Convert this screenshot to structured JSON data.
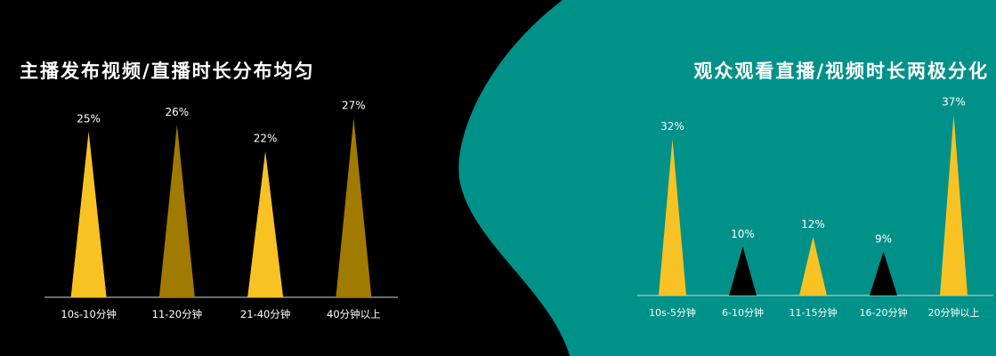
{
  "colors": {
    "background_left": "#000000",
    "background_right": "#009189",
    "gold": "#F8C322",
    "dark_gold": "#A17A00",
    "black": "#000000",
    "axis": "#d9d9d9",
    "text": "#ffffff"
  },
  "titles": {
    "left": "主播发布视频/直播时长分布均匀",
    "right": "观众观看直播/视频时长两极分化"
  },
  "chart_data": [
    {
      "type": "bar",
      "mark_shape": "triangle",
      "title": "主播发布视频/直播时长分布均匀",
      "categories": [
        "10s-10分钟",
        "11-20分钟",
        "21-40分钟",
        "40分钟以上"
      ],
      "values": [
        25,
        26,
        22,
        27
      ],
      "value_labels": [
        "25%",
        "26%",
        "22%",
        "27%"
      ],
      "unit": "%",
      "bar_colors": [
        "#F8C322",
        "#A17A00",
        "#F8C322",
        "#A17A00"
      ],
      "ylim": [
        0,
        30
      ],
      "grid": false,
      "legend": "none"
    },
    {
      "type": "bar",
      "mark_shape": "triangle",
      "title": "观众观看直播/视频时长两极分化",
      "categories": [
        "10s-5分钟",
        "6-10分钟",
        "11-15分钟",
        "16-20分钟",
        "20分钟以上"
      ],
      "values": [
        32,
        10,
        12,
        9,
        37
      ],
      "value_labels": [
        "32%",
        "10%",
        "12%",
        "9%",
        "37%"
      ],
      "unit": "%",
      "bar_colors": [
        "#F8C322",
        "#000000",
        "#F8C322",
        "#000000",
        "#F8C322"
      ],
      "ylim": [
        0,
        40
      ],
      "grid": false,
      "legend": "none"
    }
  ]
}
